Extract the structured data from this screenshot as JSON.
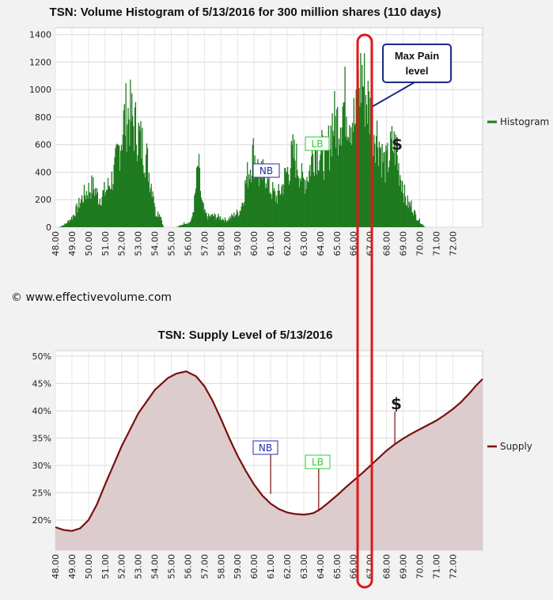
{
  "copyright": "© www.effectivevolume.com",
  "colors": {
    "histogram": "#1f7a1f",
    "histogram_dark": "#0b5d0b",
    "supply_line": "#7a0f0f",
    "supply_fill": "#ddcccd",
    "nb": "#2a2aa8",
    "lb": "#2ecc2e",
    "highlight": "#e01818",
    "callout_border": "#1a2a8a"
  },
  "x_ticks": [
    "48.00",
    "49.00",
    "50.00",
    "51.00",
    "52.00",
    "53.00",
    "54.00",
    "55.00",
    "56.00",
    "57.00",
    "58.00",
    "59.00",
    "60.00",
    "61.00",
    "62.00",
    "63.00",
    "64.00",
    "65.00",
    "66.00",
    "67.00",
    "68.00",
    "69.00",
    "70.00",
    "71.00",
    "72.00"
  ],
  "annotations": {
    "nb": "NB",
    "lb": "LB",
    "dollar": "$",
    "callout_line1": "Max Pain",
    "callout_line2": "level"
  },
  "chart_data": [
    {
      "type": "bar",
      "title": "TSN: Volume Histogram of 5/13/2016 for 300 million shares (110 days)",
      "legend": "Histogram",
      "legend_position": "right",
      "xlim": [
        48.0,
        73.8
      ],
      "ylim": [
        0,
        1450
      ],
      "y_ticks": [
        0,
        200,
        400,
        600,
        800,
        1000,
        1200,
        1400
      ],
      "grid": true,
      "envelope_x": [
        48.2,
        48.6,
        49.0,
        49.3,
        49.6,
        49.9,
        50.2,
        50.4,
        50.6,
        50.9,
        51.1,
        51.3,
        51.5,
        51.7,
        51.9,
        52.1,
        52.3,
        52.5,
        52.7,
        52.9,
        53.1,
        53.3,
        53.5,
        53.7,
        53.9,
        54.0,
        54.1,
        54.3,
        54.5,
        54.7,
        55.0,
        55.3,
        55.6,
        55.8,
        56.0,
        56.2,
        56.4,
        56.6,
        56.8,
        57.0,
        57.2,
        57.5,
        57.8,
        58.0,
        58.3,
        58.6,
        58.9,
        59.1,
        59.3,
        59.5,
        59.7,
        59.9,
        60.1,
        60.3,
        60.5,
        60.7,
        60.9,
        61.1,
        61.3,
        61.5,
        61.7,
        61.9,
        62.1,
        62.3,
        62.5,
        62.7,
        62.9,
        63.1,
        63.3,
        63.5,
        63.7,
        63.9,
        64.1,
        64.3,
        64.5,
        64.7,
        64.9,
        65.1,
        65.3,
        65.5,
        65.7,
        65.9,
        66.1,
        66.3,
        66.5,
        66.7,
        66.9,
        67.1,
        67.3,
        67.5,
        67.7,
        67.9,
        68.1,
        68.3,
        68.5,
        68.7,
        68.9,
        69.1,
        69.3,
        69.5,
        69.7,
        69.9,
        70.1,
        70.3,
        70.5,
        70.7
      ],
      "envelope_y": [
        0,
        30,
        90,
        170,
        260,
        320,
        360,
        320,
        250,
        300,
        340,
        400,
        460,
        600,
        750,
        920,
        1000,
        980,
        900,
        850,
        760,
        690,
        600,
        410,
        330,
        120,
        130,
        120,
        0,
        0,
        0,
        0,
        20,
        40,
        35,
        60,
        250,
        560,
        220,
        120,
        90,
        100,
        90,
        80,
        60,
        90,
        120,
        140,
        240,
        420,
        520,
        640,
        600,
        430,
        460,
        480,
        350,
        310,
        260,
        300,
        370,
        470,
        520,
        640,
        600,
        510,
        400,
        430,
        490,
        640,
        700,
        680,
        650,
        600,
        720,
        930,
        920,
        940,
        1060,
        1100,
        1020,
        980,
        900,
        1250,
        1330,
        1180,
        1060,
        900,
        850,
        780,
        620,
        540,
        600,
        720,
        700,
        520,
        420,
        250,
        200,
        190,
        110,
        70,
        30,
        0
      ]
    },
    {
      "type": "area",
      "title": "TSN: Supply Level of 5/13/2016",
      "legend": "Supply",
      "legend_position": "right",
      "xlim": [
        48.0,
        73.8
      ],
      "ylim": [
        14.5,
        51
      ],
      "y_ticks": [
        "20%",
        "25%",
        "30%",
        "35%",
        "40%",
        "45%",
        "50%"
      ],
      "grid": true,
      "x": [
        48.0,
        48.5,
        49.0,
        49.5,
        50.0,
        50.5,
        51.0,
        52.0,
        53.0,
        54.0,
        54.8,
        55.3,
        55.9,
        56.5,
        57.0,
        57.5,
        58.0,
        58.5,
        59.0,
        59.5,
        60.0,
        60.5,
        61.0,
        61.5,
        62.0,
        62.5,
        63.0,
        63.3,
        63.6,
        64.0,
        64.5,
        65.0,
        65.5,
        66.0,
        66.5,
        67.0,
        67.5,
        68.0,
        68.5,
        69.0,
        69.5,
        70.0,
        70.5,
        71.0,
        71.5,
        72.0,
        72.5,
        73.0,
        73.4,
        73.8
      ],
      "y": [
        18.7,
        18.2,
        18.0,
        18.5,
        20.0,
        22.8,
        26.5,
        33.5,
        39.5,
        43.8,
        46.0,
        46.8,
        47.2,
        46.3,
        44.5,
        41.8,
        38.5,
        35.0,
        31.8,
        29.0,
        26.5,
        24.5,
        23.0,
        22.0,
        21.4,
        21.1,
        21.0,
        21.1,
        21.3,
        22.0,
        23.2,
        24.5,
        25.9,
        27.2,
        28.5,
        29.9,
        31.3,
        32.7,
        33.9,
        34.9,
        35.8,
        36.6,
        37.4,
        38.2,
        39.2,
        40.3,
        41.6,
        43.2,
        44.6,
        45.8
      ],
      "markers": [
        {
          "label": "NB",
          "x": 61.0,
          "y": 24.8
        },
        {
          "label": "LB",
          "x": 63.9,
          "y": 21.6
        },
        {
          "label": "$",
          "x": 68.5,
          "y": 33.9
        }
      ]
    }
  ]
}
